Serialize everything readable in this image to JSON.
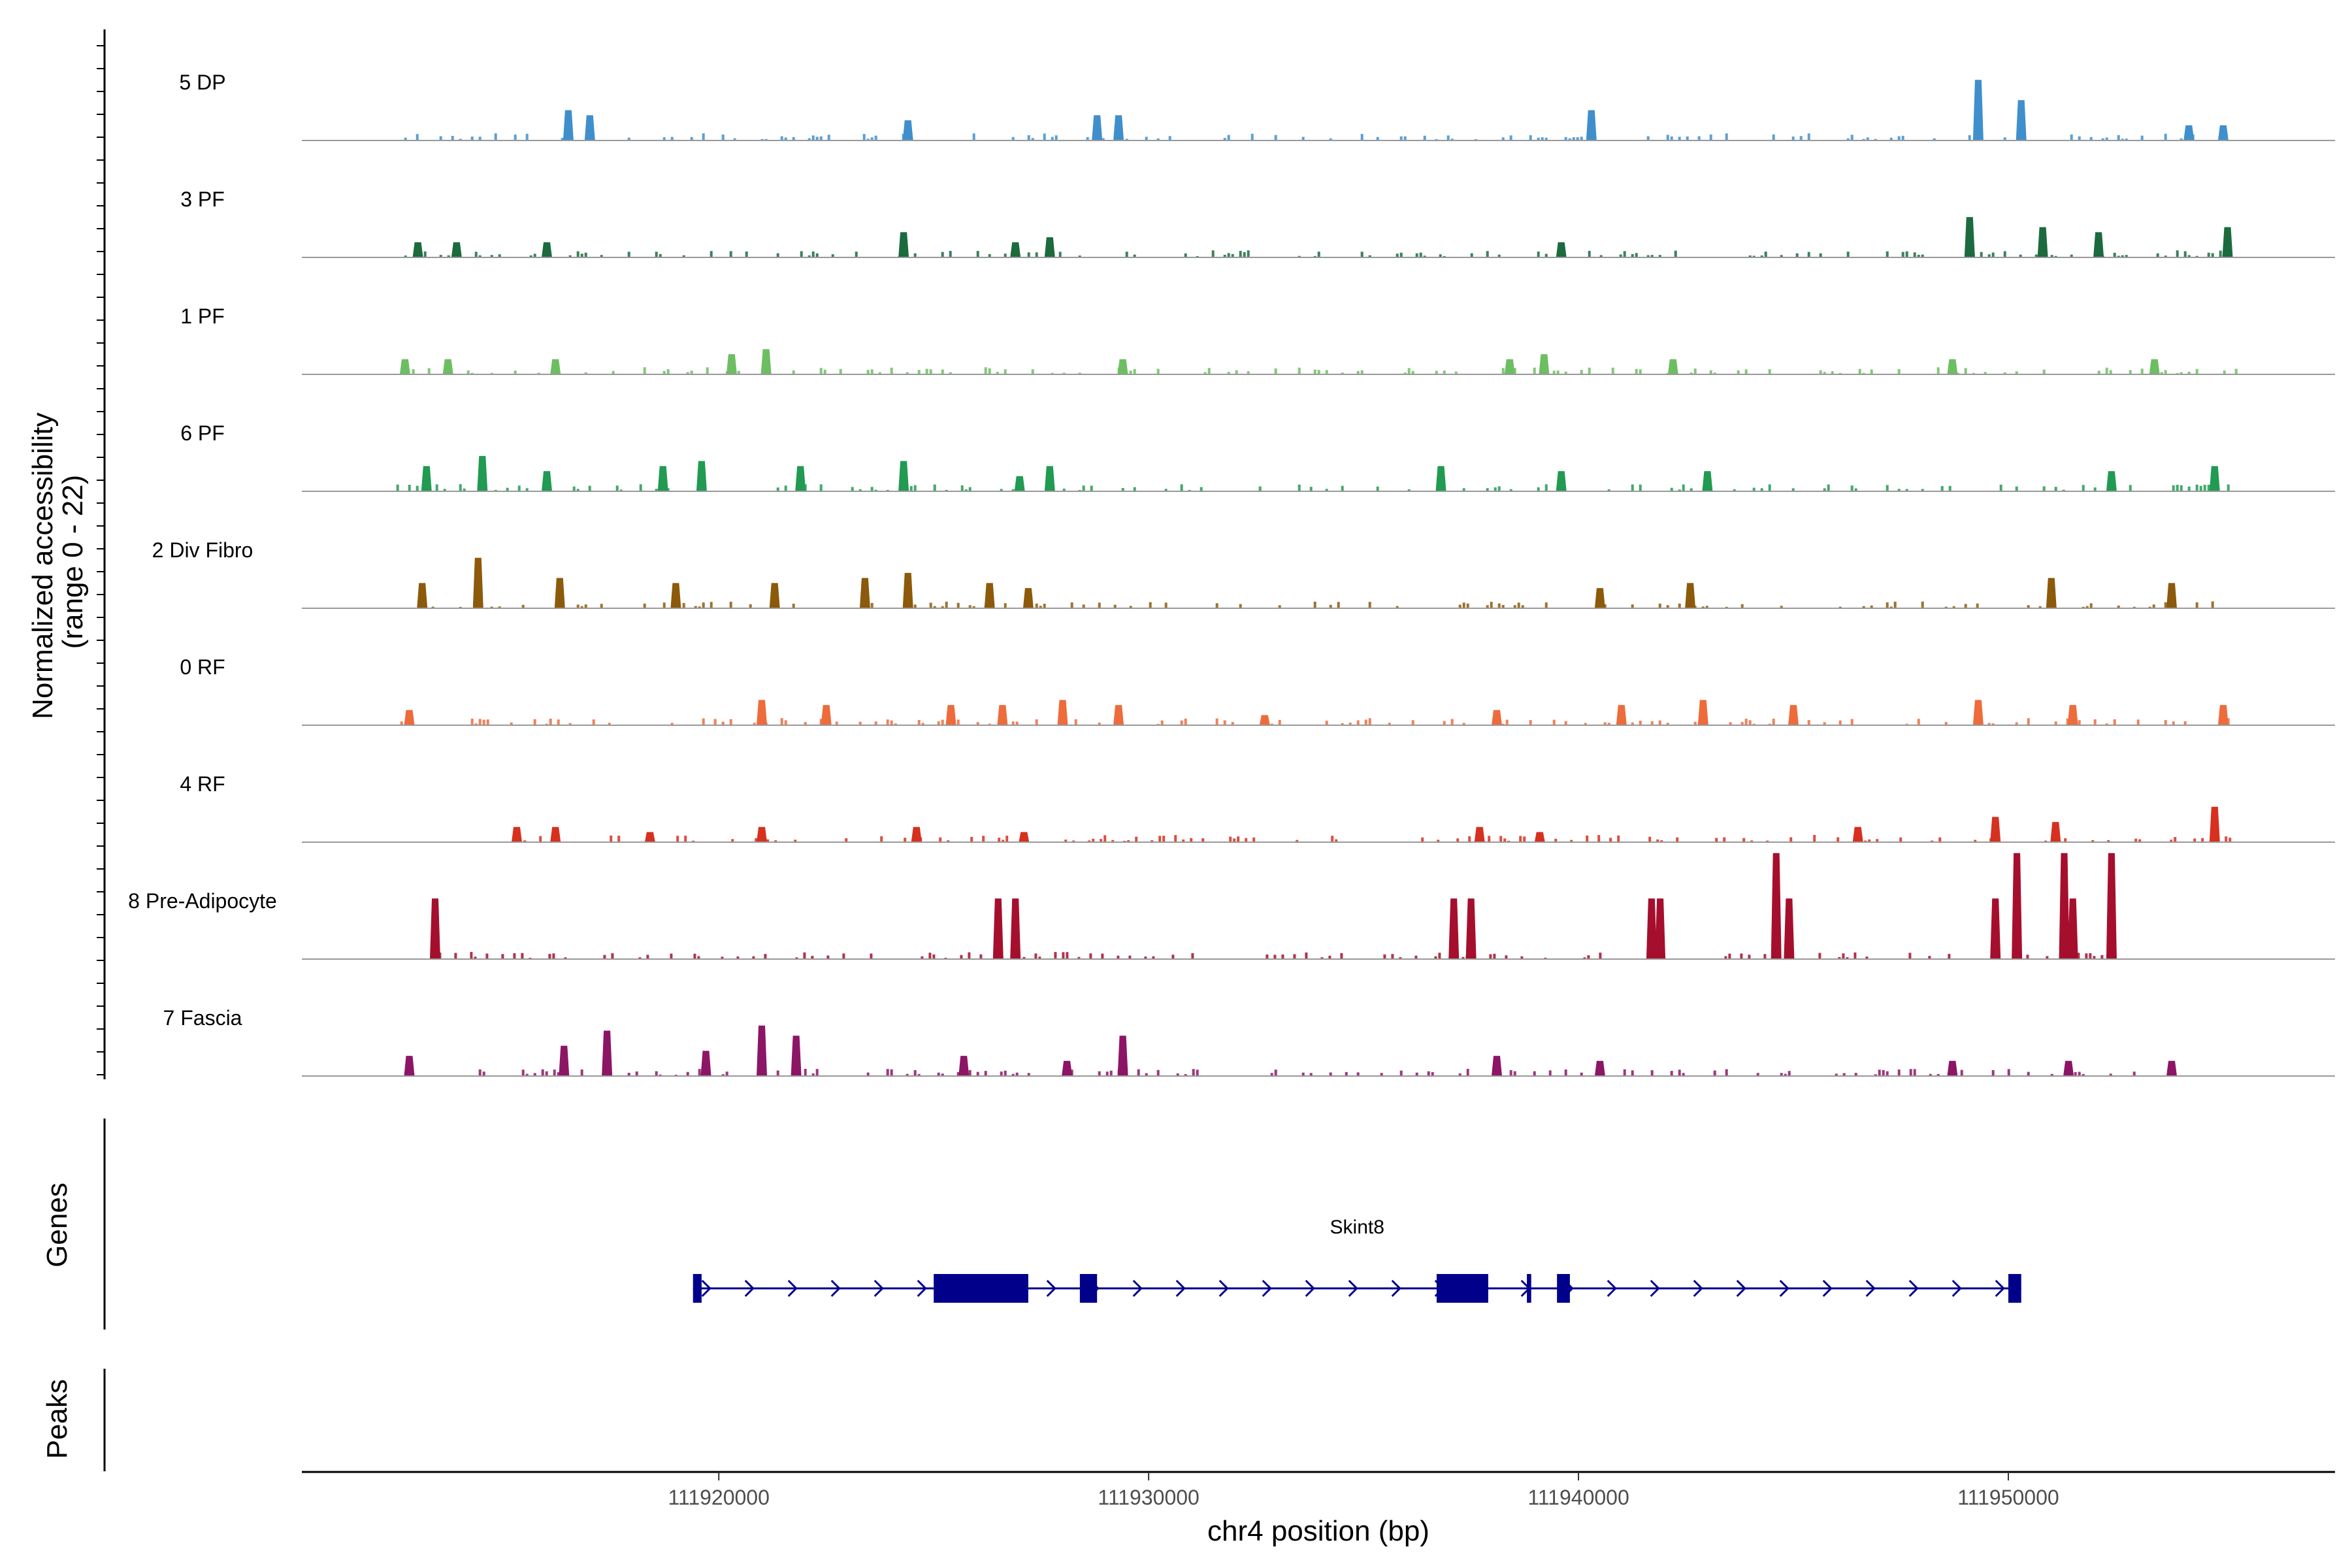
{
  "chart_data": {
    "type": "area",
    "title": "",
    "ylabel_line1": "Normalized accessibility",
    "ylabel_line2": "(range 0 - 22)",
    "y_range": [
      0,
      22
    ],
    "xlabel": "chr4 position (bp)",
    "x_range": [
      111910300,
      111957600
    ],
    "x_ticks": [
      111920000,
      111930000,
      111940000,
      111950000
    ],
    "x_tick_labels": [
      "111920000",
      "111930000",
      "111940000",
      "111950000"
    ],
    "panel_labels": {
      "genes": "Genes",
      "peaks": "Peaks"
    },
    "tracks": [
      {
        "name": "5 DP",
        "color": "#3f8fcc",
        "region_start": 111912500,
        "region_end": 111955300,
        "peaks": [
          [
            111916500,
            6
          ],
          [
            111917000,
            5
          ],
          [
            111924400,
            4
          ],
          [
            111928800,
            5
          ],
          [
            111929300,
            5
          ],
          [
            111940300,
            6
          ],
          [
            111949300,
            12
          ],
          [
            111950300,
            8
          ],
          [
            111954200,
            3
          ],
          [
            111955000,
            3
          ]
        ]
      },
      {
        "name": "3 PF",
        "color": "#1b6b3e",
        "region_start": 111912500,
        "region_end": 111955300,
        "peaks": [
          [
            111913000,
            3
          ],
          [
            111913900,
            3
          ],
          [
            111916000,
            3
          ],
          [
            111924300,
            5
          ],
          [
            111926900,
            3
          ],
          [
            111927700,
            4
          ],
          [
            111939600,
            3
          ],
          [
            111949100,
            8
          ],
          [
            111950800,
            6
          ],
          [
            111952100,
            5
          ],
          [
            111955100,
            6
          ]
        ]
      },
      {
        "name": "1 PF",
        "color": "#6dbe63",
        "region_start": 111912500,
        "region_end": 111955300,
        "peaks": [
          [
            111912700,
            3
          ],
          [
            111913700,
            3
          ],
          [
            111916200,
            3
          ],
          [
            111920300,
            4
          ],
          [
            111921100,
            5
          ],
          [
            111929400,
            3
          ],
          [
            111938400,
            3
          ],
          [
            111939200,
            4
          ],
          [
            111942200,
            3
          ],
          [
            111948700,
            3
          ],
          [
            111953400,
            3
          ]
        ]
      },
      {
        "name": "6 PF",
        "color": "#219a52",
        "region_start": 111912500,
        "region_end": 111955300,
        "peaks": [
          [
            111913200,
            5
          ],
          [
            111914500,
            7
          ],
          [
            111916000,
            4
          ],
          [
            111918700,
            5
          ],
          [
            111919600,
            6
          ],
          [
            111921900,
            5
          ],
          [
            111924300,
            6
          ],
          [
            111927000,
            3
          ],
          [
            111927700,
            5
          ],
          [
            111936800,
            5
          ],
          [
            111939600,
            4
          ],
          [
            111943000,
            4
          ],
          [
            111952400,
            4
          ],
          [
            111954800,
            5
          ]
        ]
      },
      {
        "name": "2 Div Fibro",
        "color": "#8c5a0a",
        "region_start": 111912500,
        "region_end": 111955300,
        "peaks": [
          [
            111913100,
            5
          ],
          [
            111914400,
            10
          ],
          [
            111916300,
            6
          ],
          [
            111919000,
            5
          ],
          [
            111921300,
            5
          ],
          [
            111923400,
            6
          ],
          [
            111924400,
            7
          ],
          [
            111926300,
            5
          ],
          [
            111927200,
            4
          ],
          [
            111940500,
            4
          ],
          [
            111942600,
            5
          ],
          [
            111951000,
            6
          ],
          [
            111953800,
            5
          ]
        ]
      },
      {
        "name": "0 RF",
        "color": "#ee6b3c",
        "region_start": 111912500,
        "region_end": 111955300,
        "peaks": [
          [
            111912800,
            3
          ],
          [
            111921000,
            5
          ],
          [
            111922500,
            4
          ],
          [
            111925400,
            4
          ],
          [
            111926600,
            4
          ],
          [
            111928000,
            5
          ],
          [
            111929300,
            4
          ],
          [
            111932700,
            2
          ],
          [
            111938100,
            3
          ],
          [
            111941000,
            4
          ],
          [
            111942900,
            5
          ],
          [
            111945000,
            4
          ],
          [
            111949300,
            5
          ],
          [
            111951500,
            4
          ],
          [
            111955000,
            4
          ]
        ]
      },
      {
        "name": "4 RF",
        "color": "#d7301f",
        "region_start": 111915000,
        "region_end": 111955300,
        "peaks": [
          [
            111915300,
            3
          ],
          [
            111916200,
            3
          ],
          [
            111918400,
            2
          ],
          [
            111921000,
            3
          ],
          [
            111924600,
            3
          ],
          [
            111927100,
            2
          ],
          [
            111937700,
            3
          ],
          [
            111939100,
            2
          ],
          [
            111946500,
            3
          ],
          [
            111949700,
            5
          ],
          [
            111951100,
            4
          ],
          [
            111954800,
            7
          ]
        ]
      },
      {
        "name": "8 Pre-Adipocyte",
        "color": "#a50f2d",
        "region_start": 111913300,
        "region_end": 111952500,
        "peaks": [
          [
            111913400,
            12
          ],
          [
            111926500,
            12
          ],
          [
            111926900,
            12
          ],
          [
            111937100,
            12
          ],
          [
            111937500,
            12
          ],
          [
            111941700,
            12
          ],
          [
            111941900,
            12
          ],
          [
            111944600,
            21
          ],
          [
            111944900,
            12
          ],
          [
            111949700,
            12
          ],
          [
            111950200,
            21
          ],
          [
            111951300,
            21
          ],
          [
            111951500,
            12
          ],
          [
            111952400,
            21
          ]
        ]
      },
      {
        "name": "7 Fascia",
        "color": "#8c1566",
        "region_start": 111912500,
        "region_end": 111954000,
        "peaks": [
          [
            111912800,
            4
          ],
          [
            111916400,
            6
          ],
          [
            111917400,
            9
          ],
          [
            111919700,
            5
          ],
          [
            111921000,
            10
          ],
          [
            111921800,
            8
          ],
          [
            111925700,
            4
          ],
          [
            111928100,
            3
          ],
          [
            111929400,
            8
          ],
          [
            111938100,
            4
          ],
          [
            111940500,
            3
          ],
          [
            111948700,
            3
          ],
          [
            111951400,
            3
          ],
          [
            111953800,
            3
          ]
        ]
      }
    ],
    "genes": [
      {
        "name": "Skint8",
        "strand": "+",
        "color": "#00008b",
        "start": 111919400,
        "end": 111950300,
        "exons": [
          [
            111919400,
            111919600
          ],
          [
            111925000,
            111927200
          ],
          [
            111928400,
            111928800
          ],
          [
            111936700,
            111937900
          ],
          [
            111938800,
            111938900
          ],
          [
            111939500,
            111939800
          ],
          [
            111950000,
            111950300
          ]
        ]
      }
    ],
    "peaks_panel": []
  }
}
